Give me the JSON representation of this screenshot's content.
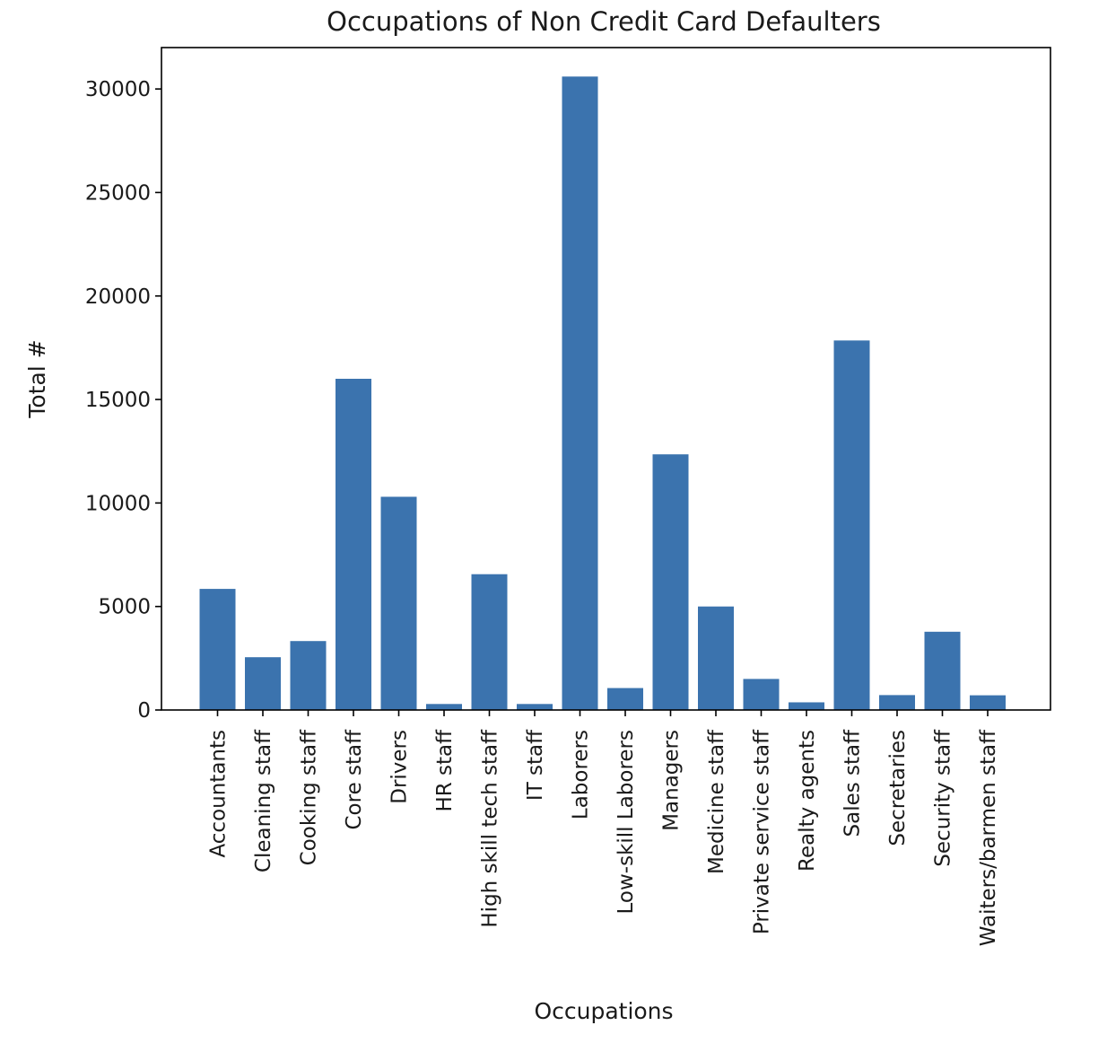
{
  "chart_data": {
    "type": "bar",
    "title": "Occupations of Non Credit Card Defaulters",
    "xlabel": "Occupations",
    "ylabel": "Total #",
    "ylim": [
      0,
      32000
    ],
    "yticks": [
      0,
      5000,
      10000,
      15000,
      20000,
      25000,
      30000
    ],
    "grid": false,
    "color": "#3b73ae",
    "categories": [
      "Accountants",
      "Cleaning staff",
      "Cooking staff",
      "Core staff",
      "Drivers",
      "HR staff",
      "High skill tech staff",
      "IT staff",
      "Laborers",
      "Low-skill Laborers",
      "Managers",
      "Medicine staff",
      "Private service staff",
      "Realty agents",
      "Sales staff",
      "Secretaries",
      "Security staff",
      "Waiters/barmen staff"
    ],
    "values": [
      5850,
      2550,
      3330,
      16000,
      10300,
      290,
      6560,
      290,
      30600,
      1060,
      12350,
      5000,
      1500,
      370,
      17850,
      720,
      3780,
      710
    ]
  }
}
